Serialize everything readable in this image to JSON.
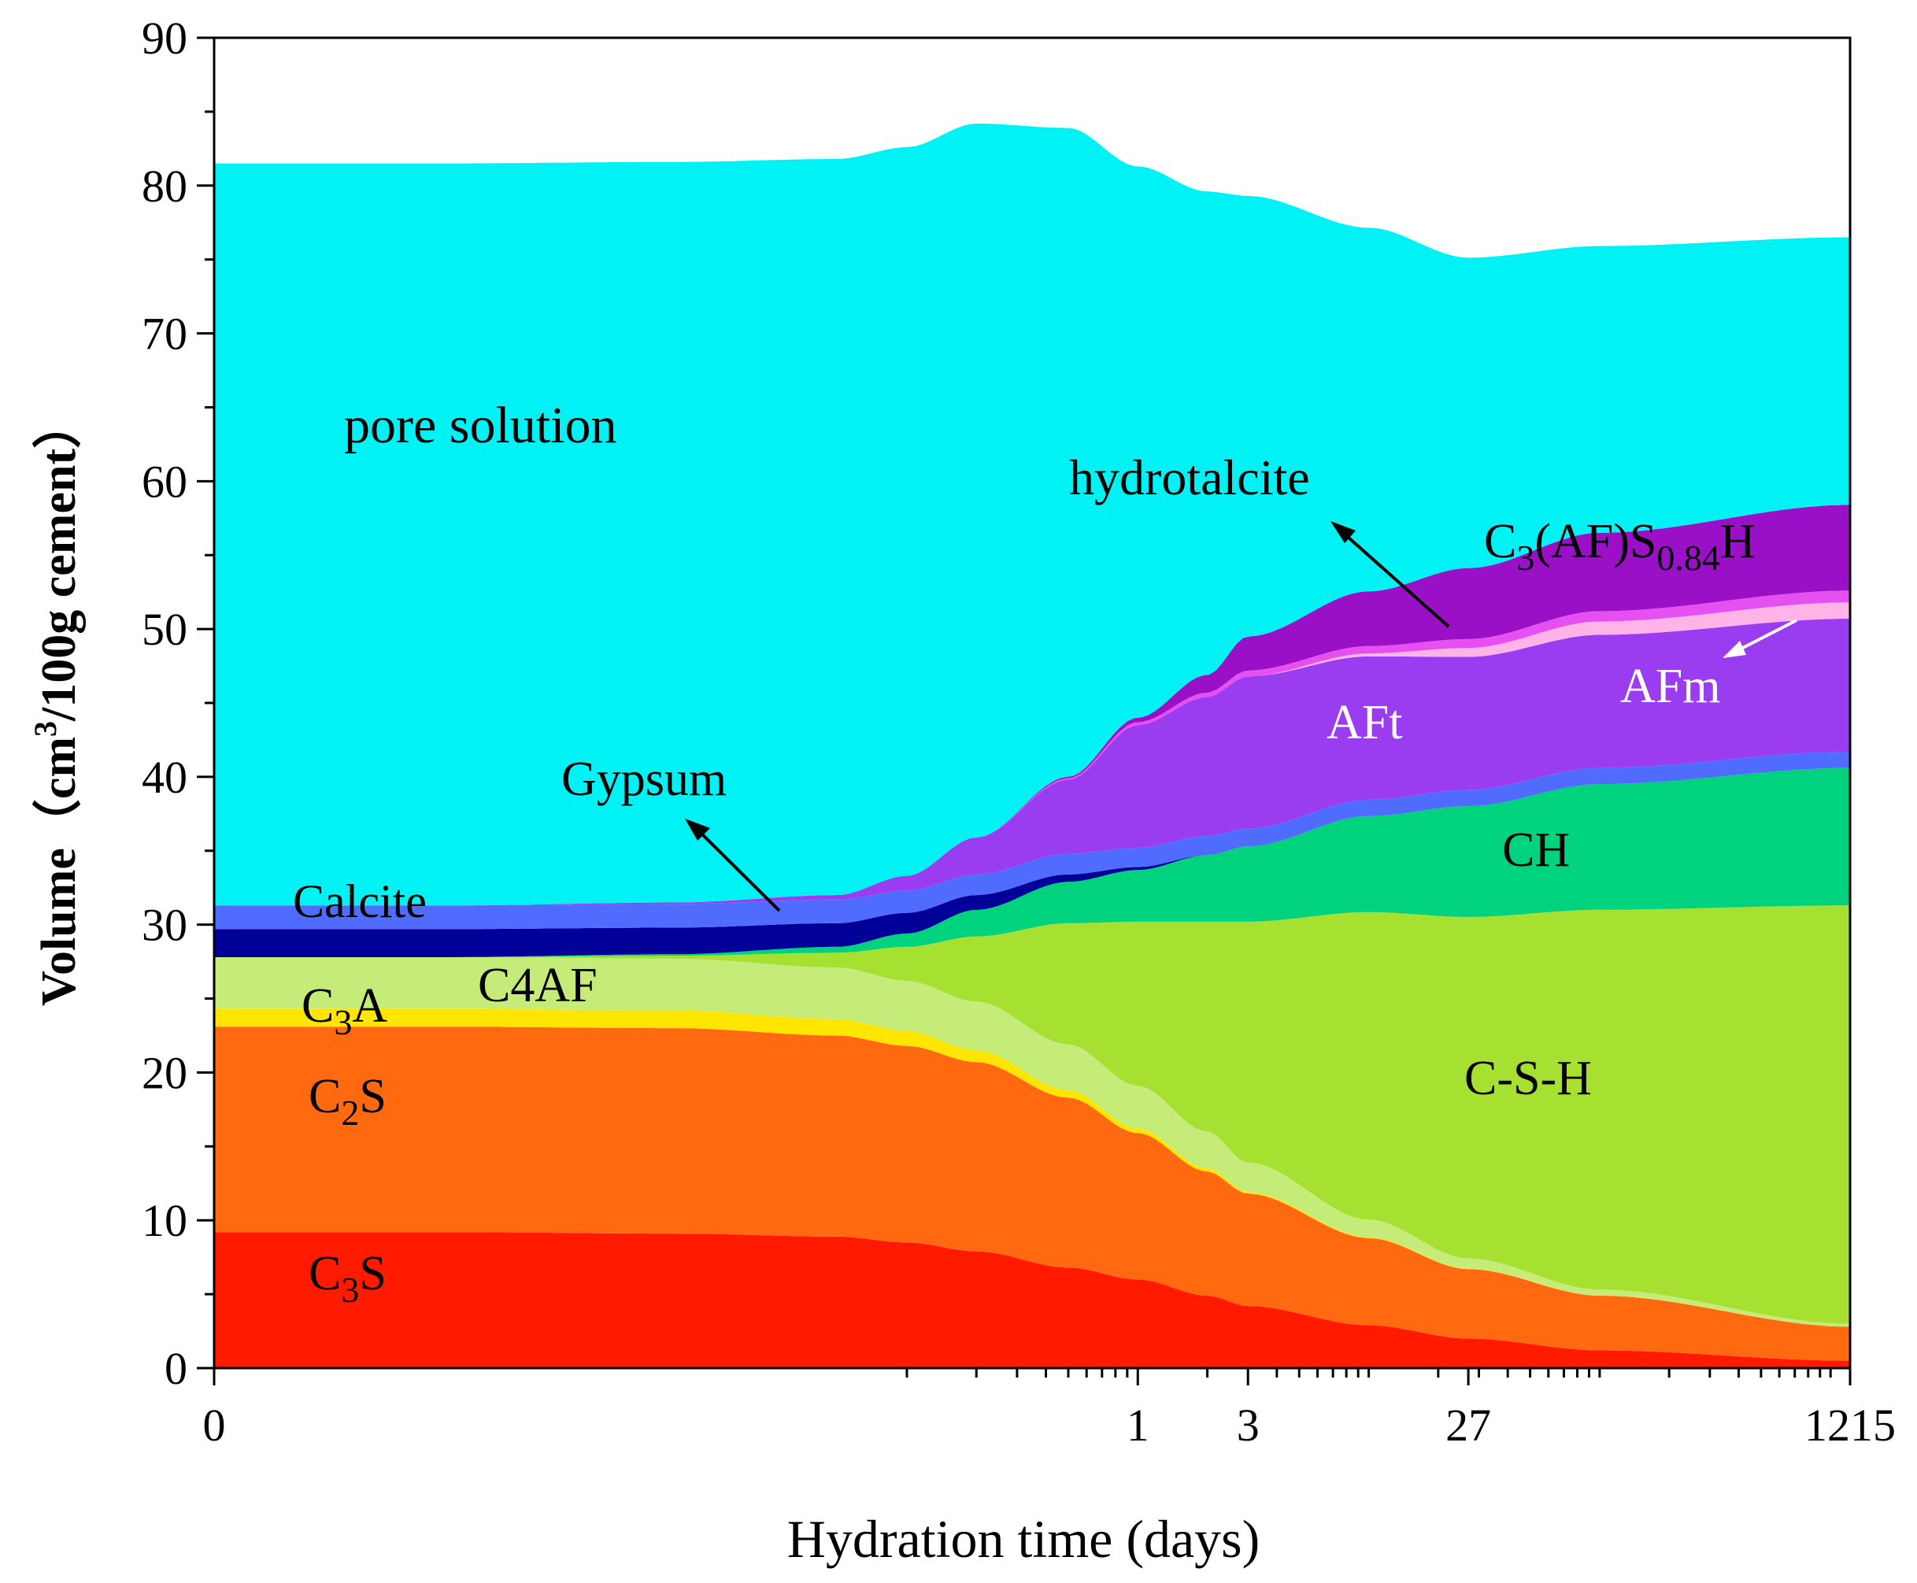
{
  "chart_data": {
    "type": "area",
    "stacked": true,
    "xlabel": "Hydration time (days)",
    "ylabel": {
      "prefix": "Volume（cm",
      "sup": "3",
      "suffix": "/100g cement）"
    },
    "ylim": [
      0,
      90
    ],
    "yticks": [
      0,
      10,
      20,
      30,
      40,
      50,
      60,
      70,
      80,
      90
    ],
    "x_scale": "log",
    "xlim_days": [
      0.0001,
      1215
    ],
    "x_start_label": "0",
    "xticks_labeled": [
      {
        "value": 1,
        "label": "1"
      },
      {
        "value": 3,
        "label": "3"
      },
      {
        "value": 27,
        "label": "27"
      },
      {
        "value": 1215,
        "label": "1215"
      }
    ],
    "x_days": [
      0.0001,
      0.001,
      0.01,
      0.05,
      0.1,
      0.2,
      0.5,
      1,
      2,
      3,
      10,
      27,
      100,
      1215
    ],
    "series": [
      {
        "name": "C3S",
        "color": "#ff1a00",
        "values": [
          9.2,
          9.2,
          9.1,
          8.9,
          8.5,
          7.9,
          6.8,
          6.0,
          4.9,
          4.2,
          2.9,
          2.0,
          1.2,
          0.5
        ]
      },
      {
        "name": "C2S",
        "color": "#ff6a10",
        "values": [
          13.9,
          13.9,
          13.9,
          13.6,
          13.3,
          12.8,
          11.5,
          9.9,
          8.4,
          7.6,
          5.9,
          4.7,
          3.7,
          2.3
        ]
      },
      {
        "name": "C3A",
        "color": "#ffe600",
        "values": [
          1.2,
          1.2,
          1.2,
          1.1,
          1.0,
          0.8,
          0.5,
          0.3,
          0.2,
          0.1,
          0.05,
          0.02,
          0.01,
          0.0
        ]
      },
      {
        "name": "C4AF",
        "color": "#c5ec78",
        "values": [
          3.5,
          3.5,
          3.5,
          3.5,
          3.4,
          3.3,
          3.1,
          2.9,
          2.5,
          2.0,
          1.2,
          0.7,
          0.4,
          0.2
        ]
      },
      {
        "name": "C-S-H",
        "color": "#a6e030",
        "values": [
          0.0,
          0.0,
          0.2,
          1.0,
          2.3,
          4.4,
          8.2,
          11.1,
          14.2,
          16.3,
          20.8,
          23.1,
          25.7,
          28.3
        ]
      },
      {
        "name": "CH",
        "color": "#00d27e",
        "values": [
          0.0,
          0.0,
          0.1,
          0.4,
          0.9,
          1.8,
          2.8,
          3.5,
          4.5,
          5.1,
          6.5,
          7.5,
          8.5,
          9.3
        ]
      },
      {
        "name": "Gypsum",
        "color": "#000099",
        "values": [
          1.9,
          1.9,
          1.8,
          1.6,
          1.4,
          1.0,
          0.5,
          0.2,
          0.0,
          0.0,
          0.0,
          0.0,
          0.0,
          0.0
        ]
      },
      {
        "name": "Calcite",
        "color": "#4f6cff",
        "values": [
          1.6,
          1.6,
          1.6,
          1.6,
          1.5,
          1.4,
          1.4,
          1.3,
          1.3,
          1.2,
          1.1,
          1.1,
          1.1,
          1.1
        ]
      },
      {
        "name": "AFt",
        "color": "#9a3cf0",
        "values": [
          0.0,
          0.0,
          0.1,
          0.3,
          1.0,
          2.5,
          5.0,
          8.3,
          9.4,
          10.3,
          9.7,
          9.0,
          9.0,
          9.0
        ]
      },
      {
        "name": "AFm",
        "color": "#ffb3e6",
        "values": [
          0.0,
          0.0,
          0.0,
          0.0,
          0.0,
          0.0,
          0.0,
          0.0,
          0.0,
          0.0,
          0.2,
          0.6,
          0.9,
          1.1
        ]
      },
      {
        "name": "hydrotalcite",
        "color": "#e64ff0",
        "values": [
          0.0,
          0.0,
          0.0,
          0.0,
          0.0,
          0.0,
          0.1,
          0.2,
          0.3,
          0.4,
          0.5,
          0.6,
          0.7,
          0.8
        ]
      },
      {
        "name": "C3(AF)S0.84H",
        "color": "#9a10c6",
        "values": [
          0.0,
          0.0,
          0.0,
          0.0,
          0.0,
          0.0,
          0.1,
          0.3,
          1.2,
          2.3,
          3.7,
          4.8,
          5.3,
          5.8
        ]
      },
      {
        "name": "pore solution",
        "color": "#00f2f4",
        "values": [
          50.2,
          50.2,
          50.1,
          49.8,
          49.3,
          48.3,
          43.9,
          37.3,
          32.7,
          29.8,
          24.6,
          21.0,
          19.4,
          18.1
        ]
      }
    ],
    "annotations": {
      "pore_solution": "pore solution",
      "hydrotalcite": "hydrotalcite",
      "c3afs_main": "C",
      "c3afs_sub1": "3",
      "c3afs_mid": "(AF)S",
      "c3afs_sub2": "0.84",
      "c3afs_end": "H",
      "afm": "AFm",
      "aft": "AFt",
      "gypsum": "Gypsum",
      "ch": "CH",
      "calcite": "Calcite",
      "csh": "C-S-H",
      "c3a_main": "C",
      "c3a_sub": "3",
      "c3a_end": "A",
      "c4af": "C4AF",
      "c2s_main": "C",
      "c2s_sub": "2",
      "c2s_end": "S",
      "c3s_main": "C",
      "c3s_sub": "3",
      "c3s_end": "S"
    }
  }
}
